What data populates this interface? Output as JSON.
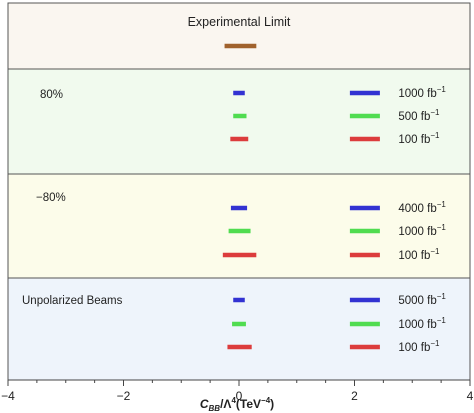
{
  "chart_data": {
    "type": "interval",
    "x_label": {
      "main": "C",
      "sub": "BB",
      "rest": "/Λ",
      "sup1": "4",
      "mid": "(TeV",
      "sup2": "−4",
      "end": ")"
    },
    "xlim": [
      -4,
      4
    ],
    "x_ticks": [
      {
        "value": -4,
        "label": "−4"
      },
      {
        "value": -2,
        "label": "−2"
      },
      {
        "value": 0,
        "label": "0"
      },
      {
        "value": 2,
        "label": "2"
      },
      {
        "value": 4,
        "label": "4"
      }
    ],
    "legend_marker_x": 2.18,
    "legend_label_x": 2.76,
    "panels": [
      {
        "title": "Experimental Limit",
        "background": "#faf6f0",
        "rows": [
          {
            "lo": -0.25,
            "hi": 0.3,
            "color": "#a0622d"
          }
        ]
      },
      {
        "title": "80%",
        "background": "#f1faee",
        "rows": [
          {
            "lo": -0.1,
            "hi": 0.1,
            "color": "#3232d2",
            "lumi": "1000",
            "unit": "fb",
            "exp": "−1"
          },
          {
            "lo": -0.1,
            "hi": 0.13,
            "color": "#50dc50",
            "lumi": "500",
            "unit": "fb",
            "exp": "−1"
          },
          {
            "lo": -0.15,
            "hi": 0.16,
            "color": "#dc3c3c",
            "lumi": "100",
            "unit": "fb",
            "exp": "−1"
          }
        ]
      },
      {
        "title": "−80%",
        "background": "#fcfcea",
        "rows": [
          {
            "lo": -0.14,
            "hi": 0.14,
            "color": "#3232d2",
            "lumi": "4000",
            "unit": "fb",
            "exp": "−1"
          },
          {
            "lo": -0.18,
            "hi": 0.2,
            "color": "#50dc50",
            "lumi": "1000",
            "unit": "fb",
            "exp": "−1"
          },
          {
            "lo": -0.28,
            "hi": 0.3,
            "color": "#dc3c3c",
            "lumi": "100",
            "unit": "fb",
            "exp": "−1"
          }
        ]
      },
      {
        "title": "Unpolarized Beams",
        "background": "#eef4fb",
        "rows": [
          {
            "lo": -0.1,
            "hi": 0.1,
            "color": "#3232d2",
            "lumi": "5000",
            "unit": "fb",
            "exp": "−1"
          },
          {
            "lo": -0.12,
            "hi": 0.12,
            "color": "#50dc50",
            "lumi": "1000",
            "unit": "fb",
            "exp": "−1"
          },
          {
            "lo": -0.2,
            "hi": 0.22,
            "color": "#dc3c3c",
            "lumi": "100",
            "unit": "fb",
            "exp": "−1"
          }
        ]
      }
    ]
  }
}
